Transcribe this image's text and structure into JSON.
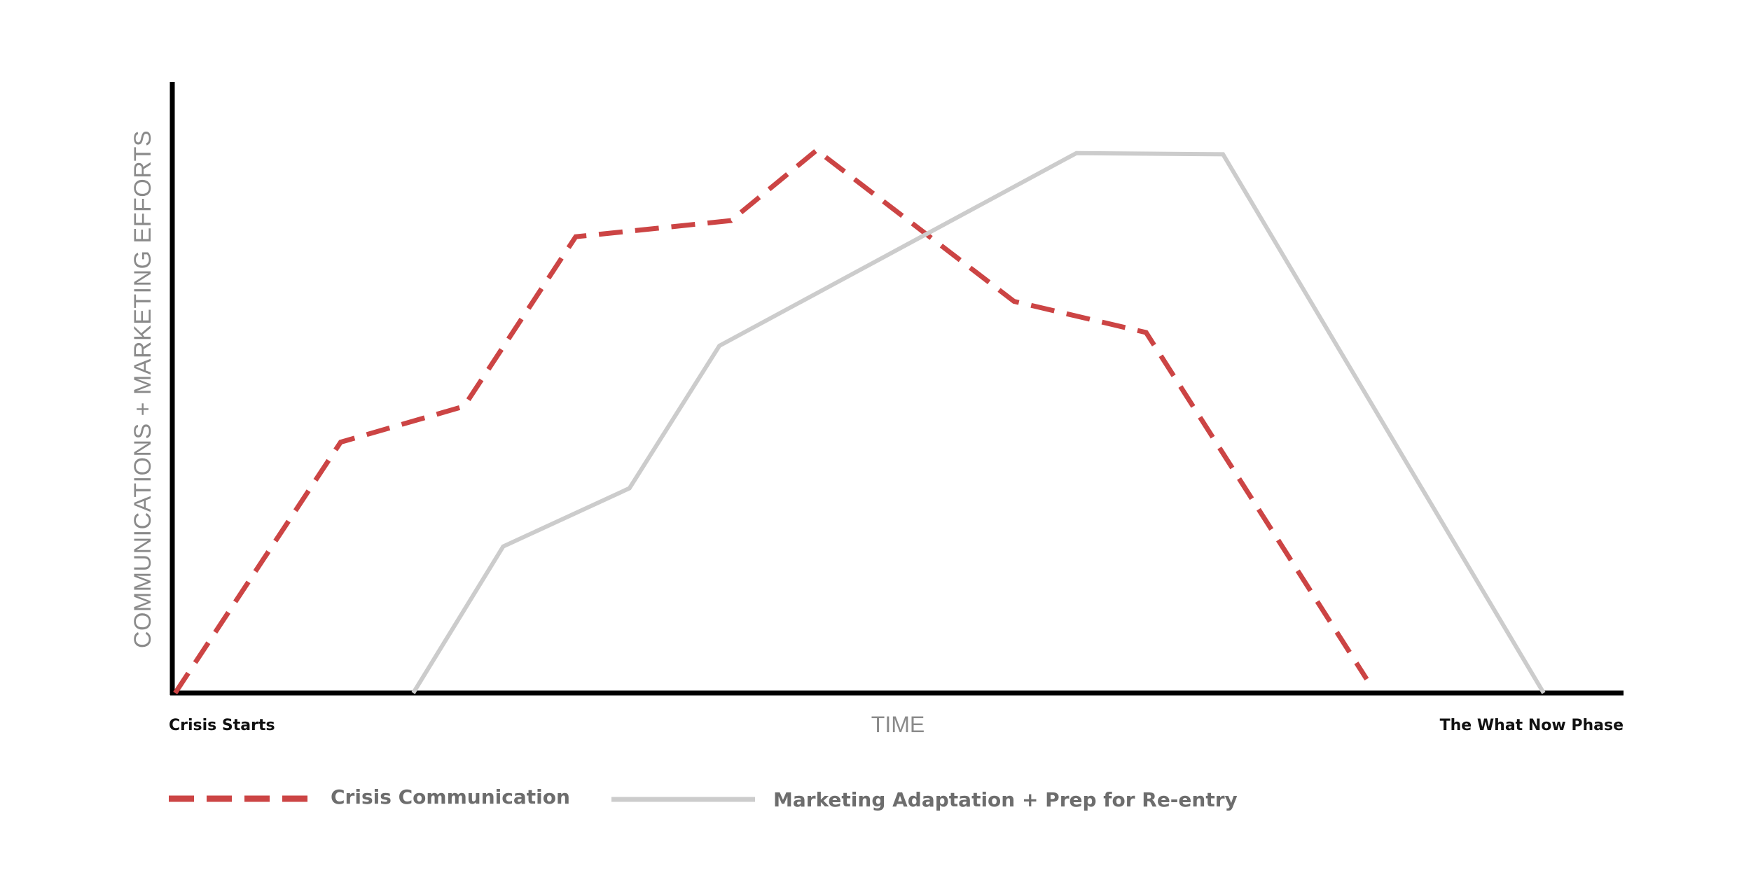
{
  "chart_data": {
    "type": "line",
    "title": "",
    "ylabel": "COMMUNICATIONS + MARKETING EFFORTS",
    "xlabel": "TIME",
    "x_tick_labels": [
      "Crisis Starts",
      "The What Now Phase"
    ],
    "xlim": [
      0,
      100
    ],
    "ylim": [
      0,
      100
    ],
    "grid": false,
    "legend_position": "bottom-left",
    "colors": {
      "axis": "#000000",
      "crisis": "#cc4444",
      "marketing": "#cccccc",
      "label_muted": "#8a8a8a",
      "legend_text": "#6d6d6d"
    },
    "series": [
      {
        "name": "Crisis Communication",
        "style": "dashed",
        "points": [
          {
            "x": 0.2,
            "y": 0
          },
          {
            "x": 11.6,
            "y": 43.5
          },
          {
            "x": 20.1,
            "y": 49.7
          },
          {
            "x": 27.8,
            "y": 79.1
          },
          {
            "x": 38.5,
            "y": 81.9
          },
          {
            "x": 44.4,
            "y": 94.1
          },
          {
            "x": 58.0,
            "y": 67.9
          },
          {
            "x": 67.1,
            "y": 62.5
          },
          {
            "x": 82.3,
            "y": 2.4
          }
        ]
      },
      {
        "name": "Marketing Adaptation + Prep for Re-entry",
        "style": "solid",
        "points": [
          {
            "x": 16.6,
            "y": 0
          },
          {
            "x": 22.8,
            "y": 25.4
          },
          {
            "x": 31.5,
            "y": 35.5
          },
          {
            "x": 37.7,
            "y": 60.2
          },
          {
            "x": 62.3,
            "y": 93.6
          },
          {
            "x": 72.4,
            "y": 93.4
          },
          {
            "x": 94.5,
            "y": 0
          }
        ]
      }
    ]
  }
}
